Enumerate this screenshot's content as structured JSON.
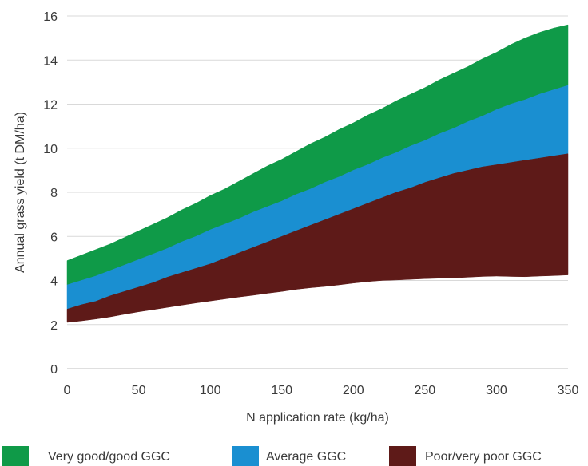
{
  "chart_data": {
    "type": "area",
    "xlabel": "N application rate (kg/ha)",
    "ylabel": "Annual grass yield (t DM/ha)",
    "xlim": [
      0,
      350
    ],
    "ylim": [
      0,
      16
    ],
    "x_ticks": [
      0,
      50,
      100,
      150,
      200,
      250,
      300,
      350
    ],
    "y_ticks": [
      0,
      2,
      4,
      6,
      8,
      10,
      12,
      14,
      16
    ],
    "grid": "horizontal",
    "legend_position": "bottom",
    "x": [
      0,
      10,
      20,
      30,
      40,
      50,
      60,
      70,
      80,
      90,
      100,
      110,
      120,
      130,
      140,
      150,
      160,
      170,
      180,
      190,
      200,
      210,
      220,
      230,
      240,
      250,
      260,
      270,
      280,
      290,
      300,
      310,
      320,
      330,
      340,
      350
    ],
    "boundaries": {
      "bottom": [
        2.1,
        2.17,
        2.25,
        2.35,
        2.47,
        2.58,
        2.68,
        2.78,
        2.88,
        2.98,
        3.07,
        3.16,
        3.25,
        3.33,
        3.42,
        3.5,
        3.6,
        3.67,
        3.73,
        3.8,
        3.88,
        3.95,
        4.0,
        4.02,
        4.05,
        4.08,
        4.1,
        4.12,
        4.15,
        4.18,
        4.2,
        4.18,
        4.17,
        4.2,
        4.22,
        4.25
      ],
      "poor_top": [
        2.7,
        2.9,
        3.05,
        3.3,
        3.5,
        3.7,
        3.9,
        4.15,
        4.35,
        4.55,
        4.75,
        5.0,
        5.25,
        5.5,
        5.75,
        6.0,
        6.25,
        6.5,
        6.75,
        7.0,
        7.25,
        7.5,
        7.75,
        8.0,
        8.2,
        8.45,
        8.65,
        8.85,
        9.0,
        9.15,
        9.25,
        9.35,
        9.45,
        9.55,
        9.65,
        9.75
      ],
      "average_top": [
        3.8,
        4.0,
        4.2,
        4.45,
        4.7,
        4.95,
        5.2,
        5.45,
        5.75,
        6.0,
        6.3,
        6.55,
        6.8,
        7.1,
        7.35,
        7.6,
        7.9,
        8.15,
        8.45,
        8.7,
        9.0,
        9.25,
        9.55,
        9.8,
        10.1,
        10.35,
        10.65,
        10.9,
        11.2,
        11.45,
        11.75,
        12.0,
        12.2,
        12.45,
        12.65,
        12.85
      ],
      "good_top": [
        4.9,
        5.15,
        5.4,
        5.65,
        5.95,
        6.25,
        6.55,
        6.85,
        7.2,
        7.5,
        7.85,
        8.15,
        8.5,
        8.85,
        9.2,
        9.5,
        9.85,
        10.2,
        10.5,
        10.85,
        11.15,
        11.5,
        11.8,
        12.15,
        12.45,
        12.75,
        13.1,
        13.4,
        13.7,
        14.05,
        14.35,
        14.7,
        15.0,
        15.25,
        15.45,
        15.6
      ]
    },
    "series": [
      {
        "name": "Very good/good GGC",
        "color": "#0f9a48",
        "lower": "average_top",
        "upper": "good_top"
      },
      {
        "name": "Average GGC",
        "color": "#1a8fd1",
        "lower": "poor_top",
        "upper": "average_top"
      },
      {
        "name": "Poor/very poor GGC",
        "color": "#5e1a18",
        "lower": "bottom",
        "upper": "poor_top"
      }
    ]
  }
}
